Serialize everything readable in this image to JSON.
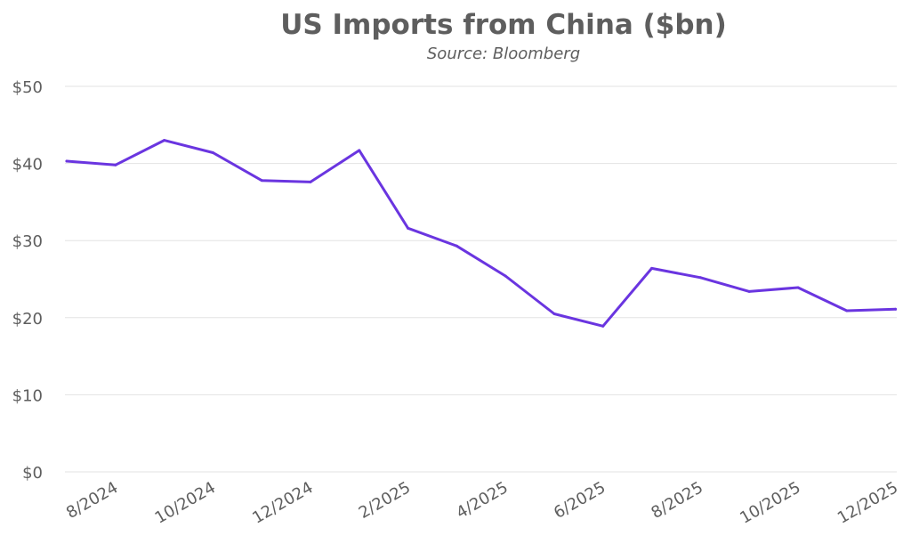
{
  "chart_data": {
    "type": "line",
    "title": "US Imports from China ($bn)",
    "subtitle": "Source: Bloomberg",
    "xlabel": "",
    "ylabel": "",
    "x": [
      "7/2024",
      "8/2024",
      "9/2024",
      "10/2024",
      "11/2024",
      "12/2024",
      "1/2025",
      "2/2025",
      "3/2025",
      "4/2025",
      "5/2025",
      "6/2025",
      "7/2025",
      "8/2025",
      "9/2025",
      "10/2025",
      "11/2025",
      "12/2025"
    ],
    "x_tick_labels": [
      "8/2024",
      "10/2024",
      "12/2024",
      "2/2025",
      "4/2025",
      "6/2025",
      "8/2025",
      "10/2025",
      "12/2025"
    ],
    "y_ticks": [
      0,
      10,
      20,
      30,
      40,
      50
    ],
    "y_tick_labels": [
      "$0",
      "$10",
      "$20",
      "$30",
      "$40",
      "$50"
    ],
    "ylim": [
      0,
      50
    ],
    "grid": true,
    "legend": "none",
    "series": [
      {
        "points": [
          {
            "x": "7/2024",
            "y": 40.3
          },
          {
            "x": "8/2024",
            "y": 39.8
          },
          {
            "x": "9/2024",
            "y": 43.0
          },
          {
            "x": "10/2024",
            "y": 41.4
          },
          {
            "x": "11/2024",
            "y": 37.8
          },
          {
            "x": "12/2024",
            "y": 37.6
          },
          {
            "x": "1/2025",
            "y": 41.7
          },
          {
            "x": "2/2025",
            "y": 31.6
          },
          {
            "x": "3/2025",
            "y": 29.3
          },
          {
            "x": "4/2025",
            "y": 25.4
          },
          {
            "x": "5/2025",
            "y": 20.5
          },
          {
            "x": "6/2025",
            "y": 18.9
          },
          {
            "x": "7/2025",
            "y": 26.4
          },
          {
            "x": "8/2025",
            "y": 25.2
          },
          {
            "x": "9/2025",
            "y": 23.4
          },
          {
            "x": "10/2025",
            "y": 23.9
          },
          {
            "x": "11/2025",
            "y": 20.9
          },
          {
            "x": "12/2025",
            "y": 21.1
          }
        ]
      }
    ],
    "colors": {
      "series": "#6a35e0",
      "grid": "#e3e3e3",
      "text": "#5e5e5e"
    }
  }
}
